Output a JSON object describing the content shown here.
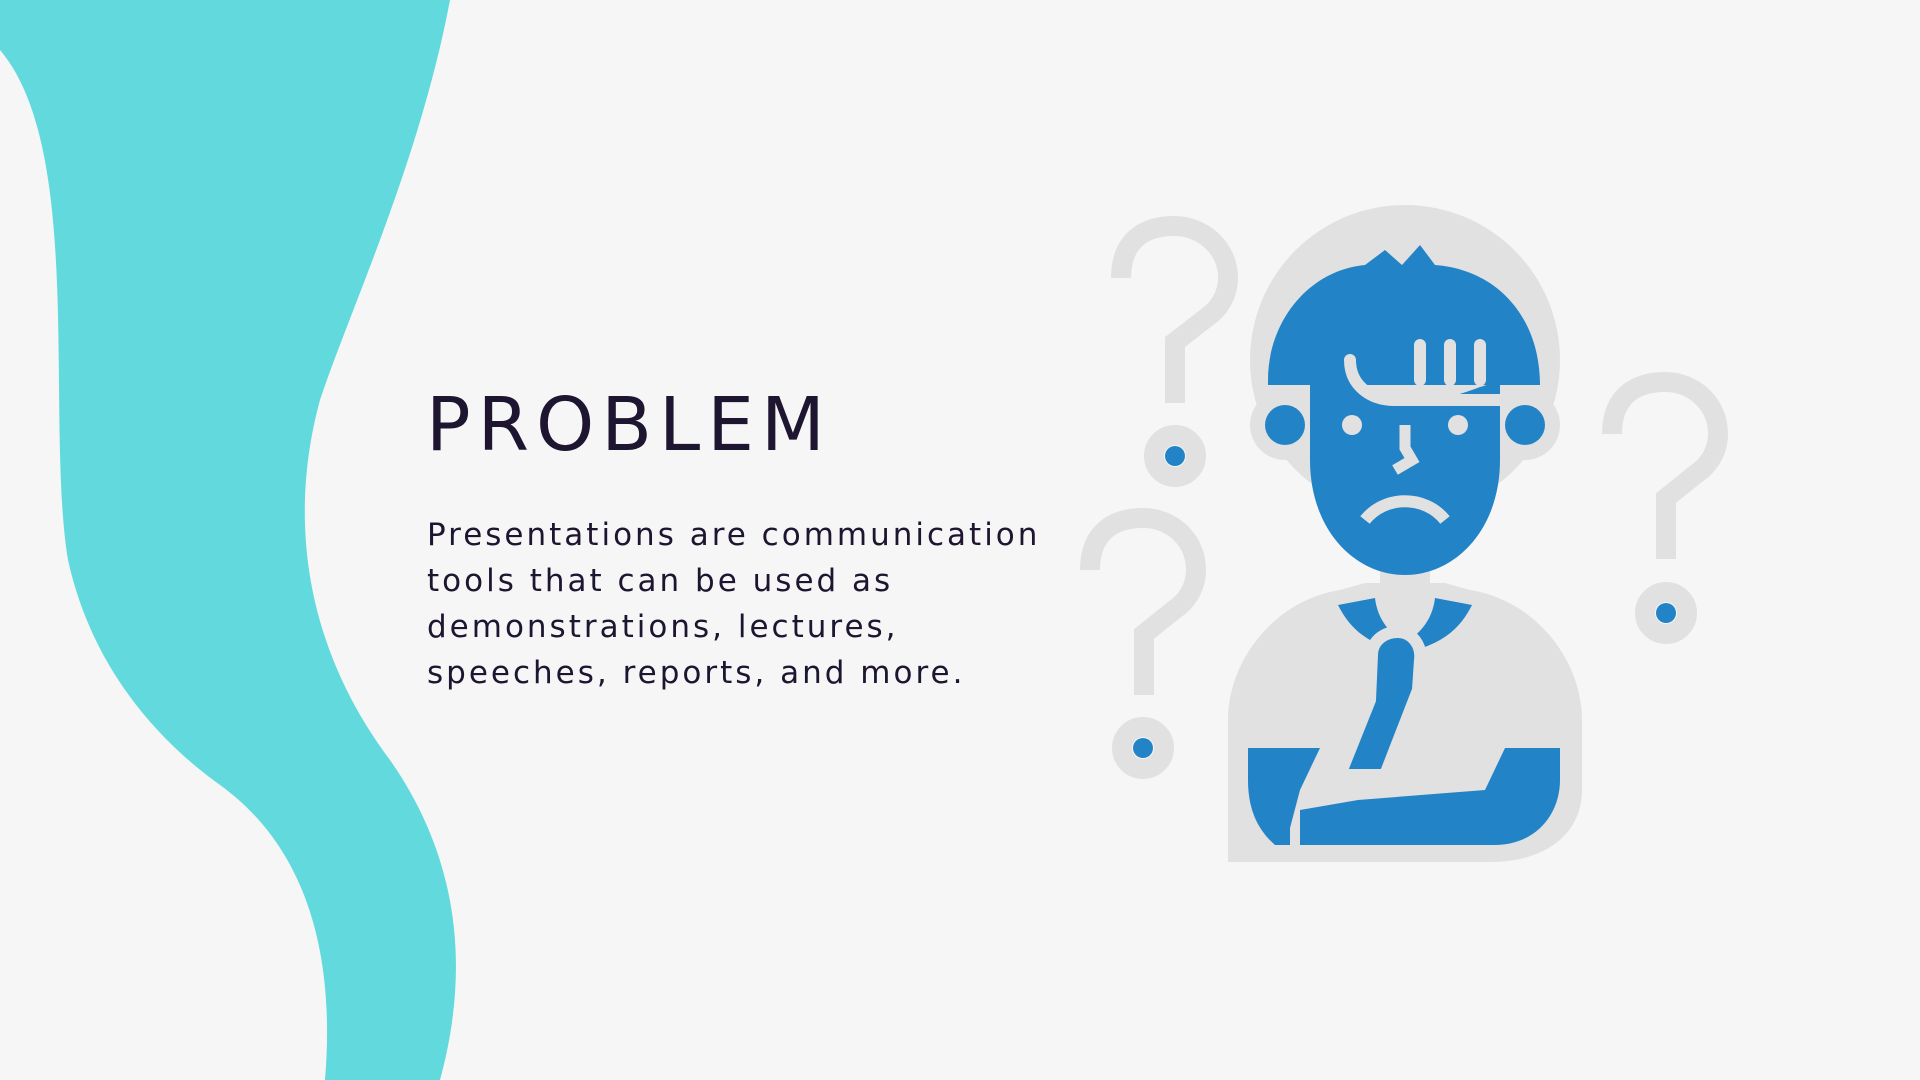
{
  "slide": {
    "title": "PROBLEM",
    "body": "Presentations are communication tools that can be used as demonstrations, lectures, speeches, reports, and more."
  },
  "colors": {
    "background": "#f6f6f6",
    "wave": "#62dadd",
    "text": "#1e1530",
    "figure_blue": "#2284c7",
    "figure_gray": "#e1e1e1"
  },
  "icons": {
    "figure": "thinking-person-icon",
    "questions": [
      "question-mark-icon",
      "question-mark-icon",
      "question-mark-icon"
    ]
  }
}
